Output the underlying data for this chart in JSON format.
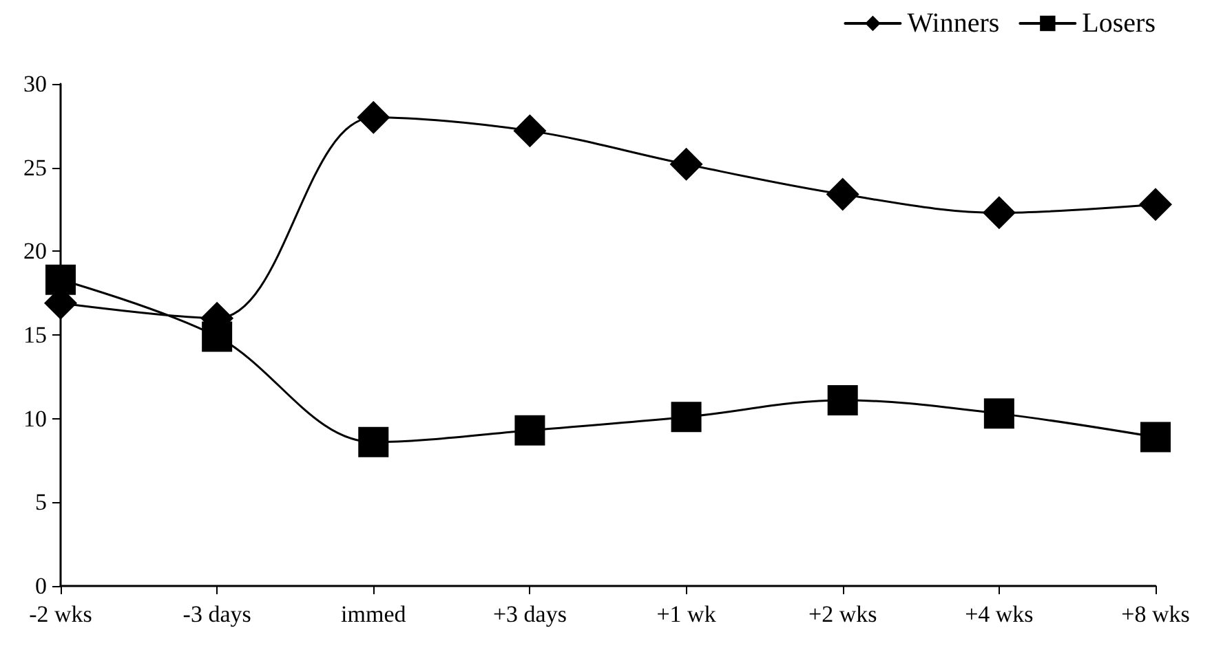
{
  "chart_data": {
    "type": "line",
    "categories": [
      "-2 wks",
      "-3 days",
      "immed",
      "+3 days",
      "+1 wk",
      "+2 wks",
      "+4 wks",
      "+8 wks"
    ],
    "series": [
      {
        "name": "Winners",
        "color": "#000000",
        "marker": "diamond",
        "values": [
          16.9,
          16.0,
          28.0,
          27.2,
          25.2,
          23.4,
          22.3,
          22.8
        ]
      },
      {
        "name": "Losers",
        "color": "#000000",
        "marker": "square",
        "values": [
          18.3,
          14.9,
          8.6,
          9.3,
          10.1,
          11.1,
          10.3,
          8.9
        ]
      }
    ],
    "ylim": [
      0,
      30
    ],
    "yticks": [
      0,
      5,
      10,
      15,
      20,
      25,
      30
    ],
    "grid": false,
    "legend": "top right",
    "line_style": "solid"
  }
}
